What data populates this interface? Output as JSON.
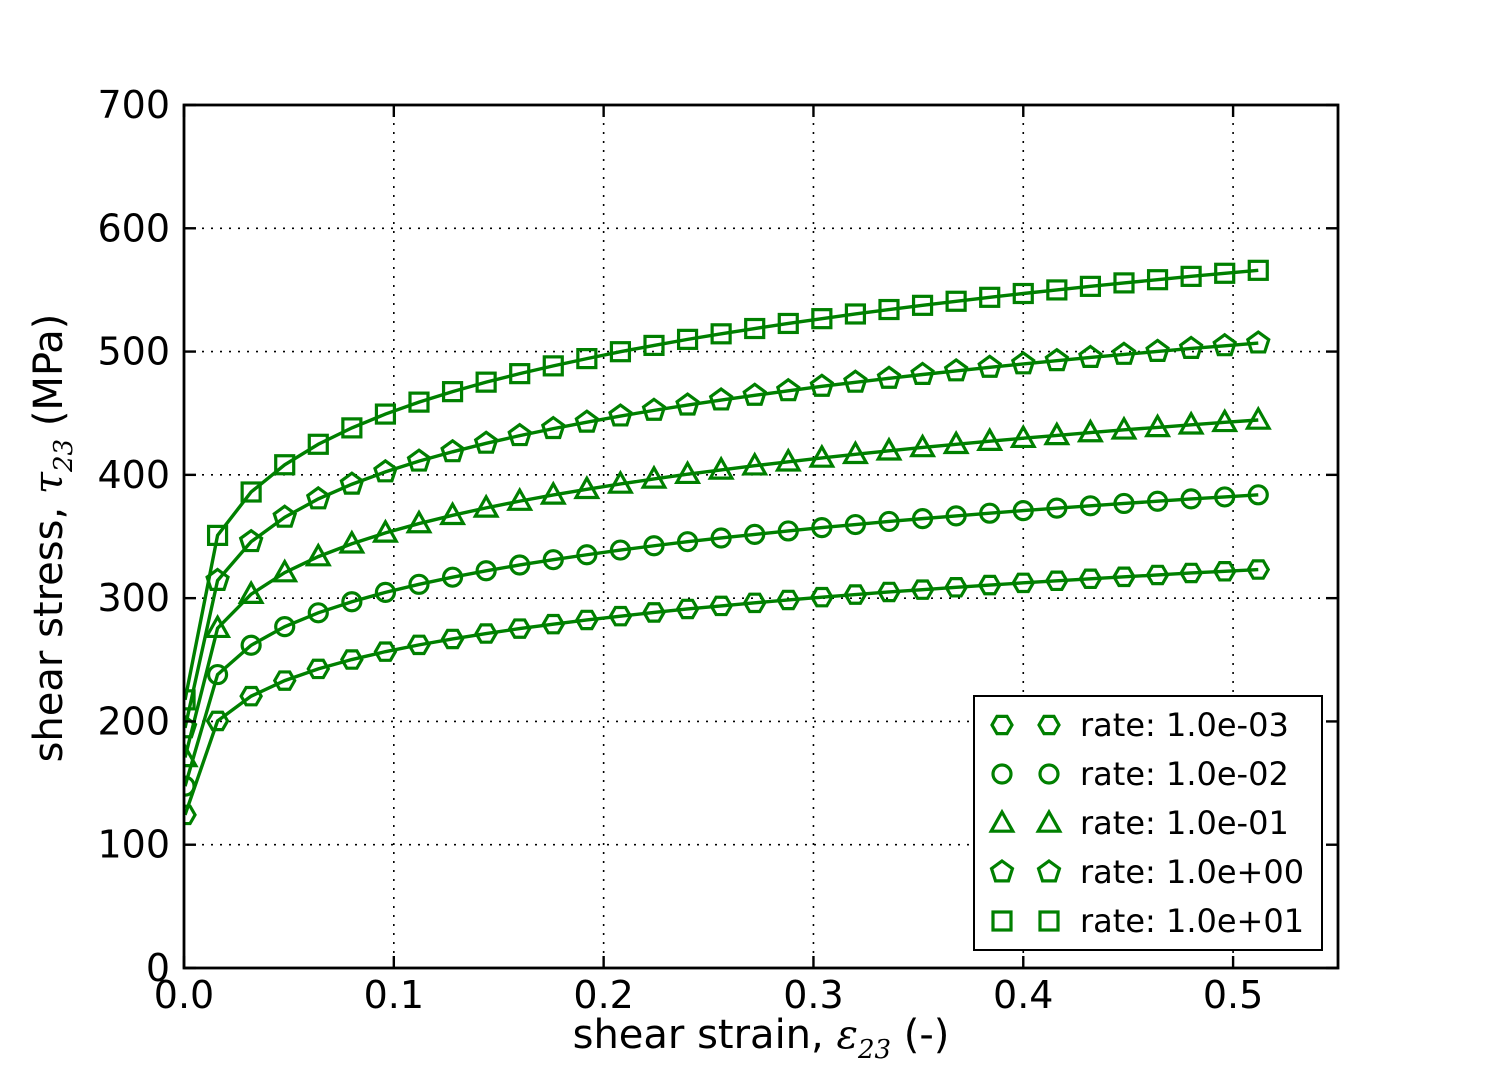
{
  "figure": {
    "background": "#ffffff"
  },
  "chart_data": {
    "type": "line",
    "title": "",
    "xlabel": "shear strain, ε23 (-)",
    "xlabel_parts": {
      "prefix": "shear strain, ",
      "symbol": "ε",
      "subscript": "23",
      "suffix": " (-)"
    },
    "ylabel": "shear stress, τ23 (MPa)",
    "ylabel_parts": {
      "prefix": "shear stress, ",
      "symbol": "τ",
      "subscript": "23",
      "suffix": " (MPa)"
    },
    "xlim": [
      0,
      0.55
    ],
    "ylim": [
      0,
      700
    ],
    "x_ticks": [
      0.0,
      0.1,
      0.2,
      0.3,
      0.4,
      0.5
    ],
    "x_tick_labels": [
      "0.0",
      "0.1",
      "0.2",
      "0.3",
      "0.4",
      "0.5"
    ],
    "y_ticks": [
      0,
      100,
      200,
      300,
      400,
      500,
      600,
      700
    ],
    "y_tick_labels": [
      "0",
      "100",
      "200",
      "300",
      "400",
      "500",
      "600",
      "700"
    ],
    "grid": "dotted",
    "legend_position": "lower right",
    "line_color": "#008000",
    "marker_face": "none",
    "x": [
      0.0005,
      0.016,
      0.032,
      0.048,
      0.064,
      0.08,
      0.096,
      0.112,
      0.128,
      0.144,
      0.16,
      0.176,
      0.192,
      0.208,
      0.224,
      0.24,
      0.256,
      0.272,
      0.288,
      0.304,
      0.32,
      0.336,
      0.352,
      0.368,
      0.384,
      0.4,
      0.416,
      0.432,
      0.448,
      0.464,
      0.48,
      0.496,
      0.512
    ],
    "series": [
      {
        "name": "rate: 1.0e-03",
        "marker": "hexagon",
        "values": [
          124.2,
          200.4,
          220.5,
          233.1,
          242.6,
          250.2,
          256.6,
          262.1,
          266.9,
          271.3,
          275.3,
          278.9,
          282.3,
          285.4,
          288.4,
          291.2,
          293.7,
          296.2,
          298.5,
          300.8,
          302.9,
          305.0,
          306.9,
          308.8,
          310.6,
          312.4,
          314.1,
          315.7,
          317.3,
          318.8,
          320.4,
          321.8,
          323.2
        ]
      },
      {
        "name": "rate: 1.0e-02",
        "marker": "circle",
        "values": [
          147.5,
          238.0,
          261.8,
          276.9,
          288.1,
          297.1,
          304.7,
          311.2,
          317.0,
          322.2,
          326.9,
          331.2,
          335.2,
          339.0,
          342.5,
          345.8,
          348.8,
          351.7,
          354.5,
          357.2,
          359.7,
          362.2,
          364.5,
          366.7,
          368.9,
          371.0,
          373.0,
          374.9,
          376.8,
          378.6,
          380.5,
          382.1,
          383.8
        ]
      },
      {
        "name": "rate: 1.0e-01",
        "marker": "triangle-up",
        "values": [
          170.8,
          275.6,
          303.2,
          320.7,
          333.7,
          344.1,
          352.9,
          360.5,
          367.2,
          373.2,
          378.7,
          383.7,
          388.3,
          392.6,
          396.7,
          400.5,
          404.0,
          407.4,
          410.6,
          413.7,
          416.7,
          419.5,
          422.2,
          424.8,
          427.3,
          429.7,
          432.0,
          434.3,
          436.5,
          438.5,
          440.6,
          442.6,
          444.5
        ]
      },
      {
        "name": "rate: 1.0e+00",
        "marker": "pentagon",
        "values": [
          194.8,
          314.3,
          345.8,
          365.6,
          380.5,
          392.4,
          402.4,
          411.1,
          418.7,
          425.6,
          431.8,
          437.5,
          442.7,
          447.7,
          452.3,
          456.6,
          460.7,
          464.5,
          468.2,
          471.8,
          475.1,
          478.3,
          481.4,
          484.3,
          487.2,
          490.0,
          492.6,
          495.2,
          497.7,
          500.1,
          502.5,
          504.7,
          506.9
        ]
      },
      {
        "name": "rate: 1.0e+01",
        "marker": "square",
        "values": [
          217.5,
          350.9,
          386.1,
          408.2,
          424.8,
          438.1,
          449.3,
          459.0,
          467.5,
          475.2,
          482.1,
          488.4,
          494.3,
          499.9,
          505.0,
          509.9,
          514.4,
          518.7,
          522.8,
          526.7,
          530.5,
          534.1,
          537.5,
          540.8,
          544.0,
          547.1,
          550.0,
          552.9,
          555.7,
          558.3,
          561.0,
          563.5,
          565.9
        ]
      }
    ]
  }
}
